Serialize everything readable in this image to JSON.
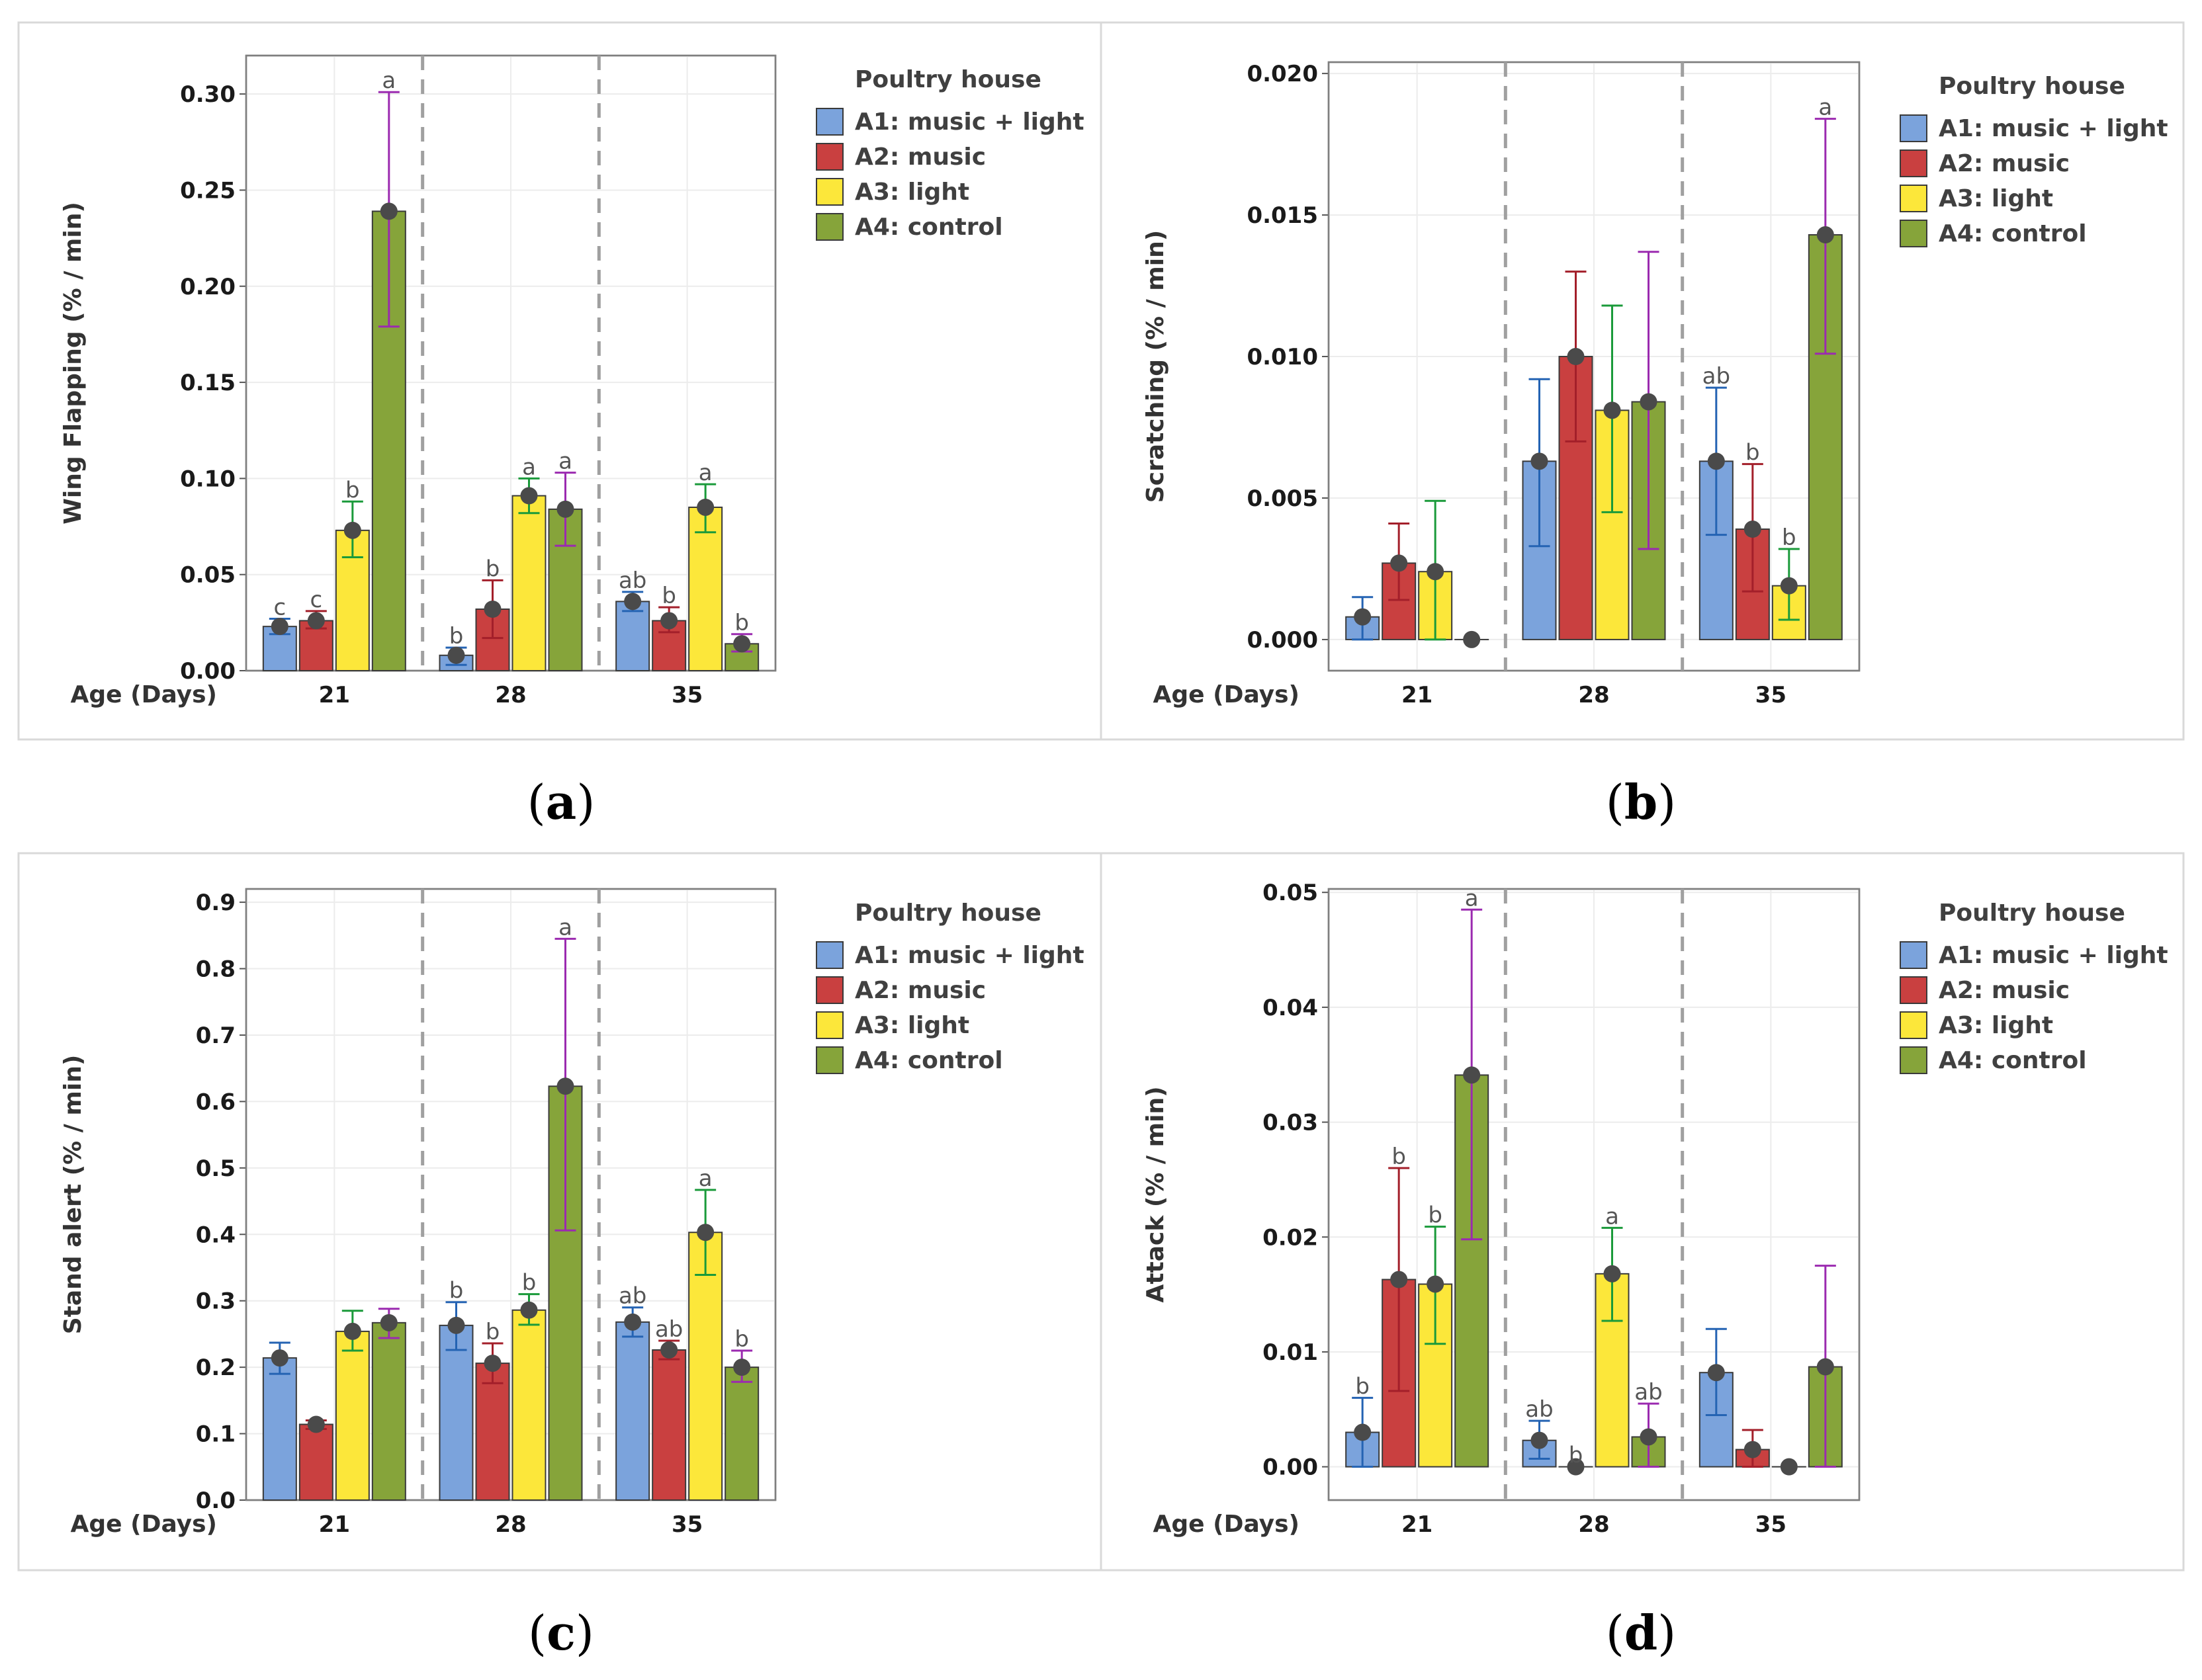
{
  "figure_caption_letters": [
    "a",
    "b",
    "c",
    "d"
  ],
  "legend": {
    "title": "Poultry house",
    "entries": [
      "A1: music + light",
      "A2: music",
      "A3: light",
      "A4: control"
    ]
  },
  "colors": {
    "fills": [
      "#7ba3dc",
      "#c94040",
      "#fce73a",
      "#86a43a"
    ],
    "errorbars": [
      "#2463b3",
      "#a31f2a",
      "#1a9a3a",
      "#9b2ab0"
    ],
    "point": "#4a4a4a",
    "divider": "#a0a0a0"
  },
  "chart_data": [
    {
      "panel": "a",
      "type": "bar",
      "ylabel": "Wing Flapping (% / min)",
      "xlabel": "Age (Days)",
      "categories": [
        "21",
        "28",
        "35"
      ],
      "ylim": [
        0,
        0.32
      ],
      "yticks": [
        "0.00",
        "0.05",
        "0.10",
        "0.15",
        "0.20",
        "0.25",
        "0.30"
      ],
      "series": [
        {
          "name": "A1: music + light",
          "values": [
            0.023,
            0.008,
            0.036
          ],
          "err_low": [
            0.019,
            0.003,
            0.031
          ],
          "err_high": [
            0.027,
            0.012,
            0.041
          ],
          "labels": [
            "c",
            "b",
            "ab"
          ]
        },
        {
          "name": "A2: music",
          "values": [
            0.026,
            0.032,
            0.026
          ],
          "err_low": [
            0.022,
            0.017,
            0.02
          ],
          "err_high": [
            0.031,
            0.047,
            0.033
          ],
          "labels": [
            "c",
            "b",
            "b"
          ]
        },
        {
          "name": "A3: light",
          "values": [
            0.073,
            0.091,
            0.085
          ],
          "err_low": [
            0.059,
            0.082,
            0.072
          ],
          "err_high": [
            0.088,
            0.1,
            0.097
          ],
          "labels": [
            "b",
            "a",
            "a"
          ]
        },
        {
          "name": "A4: control",
          "values": [
            0.239,
            0.084,
            0.014
          ],
          "err_low": [
            0.179,
            0.065,
            0.01
          ],
          "err_high": [
            0.301,
            0.103,
            0.019
          ],
          "labels": [
            "a",
            "a",
            "b"
          ]
        }
      ]
    },
    {
      "panel": "b",
      "type": "bar",
      "ylabel": "Scratching (% / min)",
      "xlabel": "Age (Days)",
      "categories": [
        "21",
        "28",
        "35"
      ],
      "ylim": [
        -0.0011,
        0.0204
      ],
      "yticks": [
        "0.000",
        "0.005",
        "0.010",
        "0.015",
        "0.020"
      ],
      "series": [
        {
          "name": "A1: music + light",
          "values": [
            0.0008,
            0.0063,
            0.0063
          ],
          "err_low": [
            0.0,
            0.0033,
            0.0037
          ],
          "err_high": [
            0.0015,
            0.0092,
            0.0089
          ],
          "labels": [
            "",
            "",
            "ab"
          ]
        },
        {
          "name": "A2: music",
          "values": [
            0.0027,
            0.01,
            0.0039
          ],
          "err_low": [
            0.0014,
            0.007,
            0.0017
          ],
          "err_high": [
            0.0041,
            0.013,
            0.0062
          ],
          "labels": [
            "",
            "",
            "b"
          ]
        },
        {
          "name": "A3: light",
          "values": [
            0.0024,
            0.0081,
            0.0019
          ],
          "err_low": [
            0.0,
            0.0045,
            0.0007
          ],
          "err_high": [
            0.0049,
            0.0118,
            0.0032
          ],
          "labels": [
            "",
            "",
            "b"
          ]
        },
        {
          "name": "A4: control",
          "values": [
            0.0,
            0.0084,
            0.0143
          ],
          "err_low": [
            0.0,
            0.0032,
            0.0101
          ],
          "err_high": [
            0.0,
            0.0137,
            0.0184
          ],
          "labels": [
            "",
            "",
            "a"
          ]
        }
      ]
    },
    {
      "panel": "c",
      "type": "bar",
      "ylabel": "Stand alert (% / min)",
      "xlabel": "Age (Days)",
      "categories": [
        "21",
        "28",
        "35"
      ],
      "ylim": [
        0,
        0.92
      ],
      "yticks": [
        "0.0",
        "0.1",
        "0.2",
        "0.3",
        "0.4",
        "0.5",
        "0.6",
        "0.7",
        "0.8",
        "0.9"
      ],
      "series": [
        {
          "name": "A1: music + light",
          "values": [
            0.214,
            0.263,
            0.268
          ],
          "err_low": [
            0.19,
            0.226,
            0.246
          ],
          "err_high": [
            0.237,
            0.298,
            0.29
          ],
          "labels": [
            "",
            "b",
            "ab"
          ]
        },
        {
          "name": "A2: music",
          "values": [
            0.114,
            0.206,
            0.226
          ],
          "err_low": [
            0.107,
            0.176,
            0.212
          ],
          "err_high": [
            0.12,
            0.236,
            0.24
          ],
          "labels": [
            "",
            "b",
            "ab"
          ]
        },
        {
          "name": "A3: light",
          "values": [
            0.254,
            0.286,
            0.403
          ],
          "err_low": [
            0.225,
            0.264,
            0.339
          ],
          "err_high": [
            0.285,
            0.31,
            0.467
          ],
          "labels": [
            "",
            "b",
            "a"
          ]
        },
        {
          "name": "A4: control",
          "values": [
            0.267,
            0.623,
            0.2
          ],
          "err_low": [
            0.244,
            0.406,
            0.178
          ],
          "err_high": [
            0.288,
            0.845,
            0.225
          ],
          "labels": [
            "",
            "a",
            "b"
          ]
        }
      ]
    },
    {
      "panel": "d",
      "type": "bar",
      "ylabel": "Attack (% / min)",
      "xlabel": "Age (Days)",
      "categories": [
        "21",
        "28",
        "35"
      ],
      "ylim": [
        -0.0029,
        0.0503
      ],
      "yticks": [
        "0.00",
        "0.01",
        "0.02",
        "0.03",
        "0.04",
        "0.05"
      ],
      "series": [
        {
          "name": "A1: music + light",
          "values": [
            0.003,
            0.0023,
            0.0082
          ],
          "err_low": [
            0.0,
            0.0007,
            0.0045
          ],
          "err_high": [
            0.006,
            0.004,
            0.012
          ],
          "labels": [
            "b",
            "ab",
            ""
          ]
        },
        {
          "name": "A2: music",
          "values": [
            0.0163,
            0.0,
            0.0015
          ],
          "err_low": [
            0.0066,
            0.0,
            0.0
          ],
          "err_high": [
            0.026,
            0.0,
            0.0032
          ],
          "labels": [
            "b",
            "b",
            ""
          ]
        },
        {
          "name": "A3: light",
          "values": [
            0.0159,
            0.0168,
            0.0
          ],
          "err_low": [
            0.0107,
            0.0127,
            0.0
          ],
          "err_high": [
            0.0209,
            0.0208,
            0.0
          ],
          "labels": [
            "b",
            "a",
            ""
          ]
        },
        {
          "name": "A4: control",
          "values": [
            0.0341,
            0.0026,
            0.0087
          ],
          "err_low": [
            0.0198,
            0.0,
            0.0
          ],
          "err_high": [
            0.0485,
            0.0055,
            0.0175
          ],
          "labels": [
            "a",
            "ab",
            ""
          ]
        }
      ]
    }
  ]
}
